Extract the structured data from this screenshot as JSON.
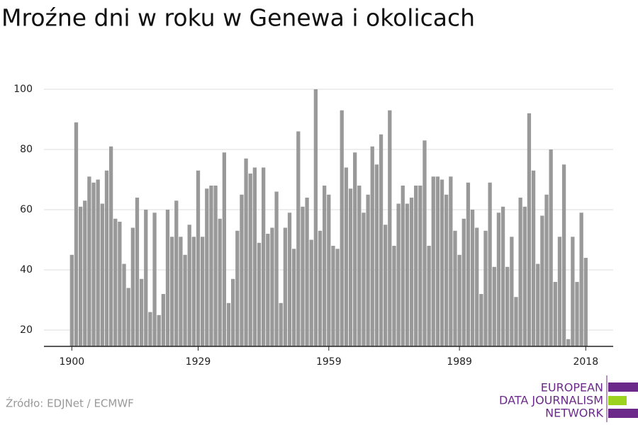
{
  "chart_data": {
    "type": "bar",
    "title": "Mroźne dni w roku w Genewa i okolicach",
    "source": "Źródło: EDJNet / ECMWF",
    "logo": [
      "EUROPEAN",
      "DATA JOURNALISM",
      "NETWORK"
    ],
    "color": "#999999",
    "grid": true,
    "x": [
      1900,
      1901,
      1902,
      1903,
      1904,
      1905,
      1906,
      1907,
      1908,
      1909,
      1910,
      1911,
      1912,
      1913,
      1914,
      1915,
      1916,
      1917,
      1918,
      1919,
      1920,
      1921,
      1922,
      1923,
      1924,
      1925,
      1926,
      1927,
      1928,
      1929,
      1930,
      1931,
      1932,
      1933,
      1934,
      1935,
      1936,
      1937,
      1938,
      1939,
      1940,
      1941,
      1942,
      1943,
      1944,
      1945,
      1946,
      1947,
      1948,
      1949,
      1950,
      1951,
      1952,
      1953,
      1954,
      1955,
      1956,
      1957,
      1958,
      1959,
      1960,
      1961,
      1962,
      1963,
      1964,
      1965,
      1966,
      1967,
      1968,
      1969,
      1970,
      1971,
      1972,
      1973,
      1974,
      1975,
      1976,
      1977,
      1978,
      1979,
      1980,
      1981,
      1982,
      1983,
      1984,
      1985,
      1986,
      1987,
      1988,
      1989,
      1990,
      1991,
      1992,
      1993,
      1994,
      1995,
      1996,
      1997,
      1998,
      1999,
      2000,
      2001,
      2002,
      2003,
      2004,
      2005,
      2006,
      2007,
      2008,
      2009,
      2010,
      2011,
      2012,
      2013,
      2014,
      2015,
      2016,
      2017,
      2018
    ],
    "values": [
      45,
      89,
      61,
      63,
      71,
      69,
      70,
      62,
      73,
      81,
      57,
      56,
      42,
      34,
      54,
      64,
      37,
      60,
      26,
      59,
      25,
      32,
      60,
      51,
      63,
      51,
      45,
      55,
      51,
      73,
      51,
      67,
      68,
      68,
      57,
      79,
      29,
      37,
      53,
      65,
      77,
      72,
      74,
      49,
      74,
      52,
      54,
      66,
      29,
      54,
      59,
      47,
      86,
      61,
      64,
      50,
      100,
      53,
      68,
      65,
      48,
      47,
      93,
      74,
      67,
      79,
      68,
      59,
      65,
      81,
      75,
      85,
      55,
      93,
      48,
      62,
      68,
      62,
      64,
      68,
      68,
      83,
      48,
      71,
      71,
      70,
      65,
      71,
      53,
      45,
      57,
      69,
      60,
      54,
      32,
      53,
      69,
      41,
      59,
      61,
      41,
      51,
      31,
      64,
      61,
      92,
      73,
      42,
      58,
      65,
      80,
      36,
      51,
      75,
      17,
      51,
      36,
      59,
      44
    ],
    "xlim": [
      1893.6,
      2024.3
    ],
    "xticks": [
      1900,
      1929,
      1959,
      1989,
      2018
    ],
    "ylim": [
      14.6,
      100
    ],
    "yticks": [
      20,
      40,
      60,
      80,
      100
    ]
  }
}
